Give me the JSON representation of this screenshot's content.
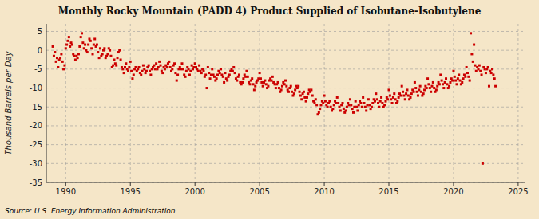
{
  "chart_data": {
    "type": "scatter",
    "title": "Monthly Rocky Mountain (PADD 4) Product Supplied of Isobutane-Isobutylene",
    "y_label": "Thousand Barrels per Day",
    "annotations": [
      "Source: U.S. Energy Information Administration"
    ],
    "color": "#cc0000",
    "marker": "square",
    "grid": true,
    "xlim": [
      1988.5,
      2025.5
    ],
    "ylim": [
      -35,
      7
    ],
    "xticks": [
      1990,
      1995,
      2000,
      2005,
      2010,
      2015,
      2020,
      2025
    ],
    "yticks": [
      5,
      0,
      -5,
      -10,
      -15,
      -20,
      -25,
      -30,
      -35
    ],
    "x": [
      1989,
      1989.0833333333333,
      1989.1666666666667,
      1989.25,
      1989.3333333333333,
      1989.4166666666667,
      1989.5,
      1989.5833333333333,
      1989.6666666666667,
      1989.75,
      1989.8333333333333,
      1989.9166666666667,
      1990,
      1990.0833333333333,
      1990.1666666666667,
      1990.25,
      1990.3333333333333,
      1990.4166666666667,
      1990.5,
      1990.5833333333333,
      1990.6666666666667,
      1990.75,
      1990.8333333333333,
      1990.9166666666667,
      1991,
      1991.0833333333333,
      1991.1666666666667,
      1991.25,
      1991.3333333333333,
      1991.4166666666667,
      1991.5,
      1991.5833333333333,
      1991.6666666666667,
      1991.75,
      1991.8333333333333,
      1991.9166666666667,
      1992,
      1992.0833333333333,
      1992.1666666666667,
      1992.25,
      1992.3333333333333,
      1992.4166666666667,
      1992.5,
      1992.5833333333333,
      1992.6666666666667,
      1992.75,
      1992.8333333333333,
      1992.9166666666667,
      1993,
      1993.0833333333333,
      1993.1666666666667,
      1993.25,
      1993.3333333333333,
      1993.4166666666667,
      1993.5,
      1993.5833333333333,
      1993.6666666666667,
      1993.75,
      1993.8333333333333,
      1993.9166666666667,
      1994,
      1994.0833333333333,
      1994.1666666666667,
      1994.25,
      1994.3333333333333,
      1994.4166666666667,
      1994.5,
      1994.5833333333333,
      1994.6666666666667,
      1994.75,
      1994.8333333333333,
      1994.9166666666667,
      1995,
      1995.0833333333333,
      1995.1666666666667,
      1995.25,
      1995.3333333333333,
      1995.4166666666667,
      1995.5,
      1995.5833333333333,
      1995.6666666666667,
      1995.75,
      1995.8333333333333,
      1995.9166666666667,
      1996,
      1996.0833333333333,
      1996.1666666666667,
      1996.25,
      1996.3333333333333,
      1996.4166666666667,
      1996.5,
      1996.5833333333333,
      1996.6666666666667,
      1996.75,
      1996.8333333333333,
      1996.9166666666667,
      1997,
      1997.0833333333333,
      1997.1666666666667,
      1997.25,
      1997.3333333333333,
      1997.4166666666667,
      1997.5,
      1997.5833333333333,
      1997.6666666666667,
      1997.75,
      1997.8333333333333,
      1997.9166666666667,
      1998,
      1998.0833333333333,
      1998.1666666666667,
      1998.25,
      1998.3333333333333,
      1998.4166666666667,
      1998.5,
      1998.5833333333333,
      1998.6666666666667,
      1998.75,
      1998.8333333333333,
      1998.9166666666667,
      1999,
      1999.0833333333333,
      1999.1666666666667,
      1999.25,
      1999.3333333333333,
      1999.4166666666667,
      1999.5,
      1999.5833333333333,
      1999.6666666666667,
      1999.75,
      1999.8333333333333,
      1999.9166666666667,
      2000,
      2000.0833333333333,
      2000.1666666666667,
      2000.25,
      2000.3333333333333,
      2000.4166666666667,
      2000.5,
      2000.5833333333333,
      2000.6666666666667,
      2000.75,
      2000.8333333333333,
      2000.9166666666667,
      2001,
      2001.0833333333333,
      2001.1666666666667,
      2001.25,
      2001.3333333333333,
      2001.4166666666667,
      2001.5,
      2001.5833333333333,
      2001.6666666666667,
      2001.75,
      2001.8333333333333,
      2001.9166666666667,
      2002,
      2002.0833333333333,
      2002.1666666666667,
      2002.25,
      2002.3333333333333,
      2002.4166666666667,
      2002.5,
      2002.5833333333333,
      2002.6666666666667,
      2002.75,
      2002.8333333333333,
      2002.9166666666667,
      2003,
      2003.0833333333333,
      2003.1666666666667,
      2003.25,
      2003.3333333333333,
      2003.4166666666667,
      2003.5,
      2003.5833333333333,
      2003.6666666666667,
      2003.75,
      2003.8333333333333,
      2003.9166666666667,
      2004,
      2004.0833333333333,
      2004.1666666666667,
      2004.25,
      2004.3333333333333,
      2004.4166666666667,
      2004.5,
      2004.5833333333333,
      2004.6666666666667,
      2004.75,
      2004.8333333333333,
      2004.9166666666667,
      2005,
      2005.0833333333333,
      2005.1666666666667,
      2005.25,
      2005.3333333333333,
      2005.4166666666667,
      2005.5,
      2005.5833333333333,
      2005.6666666666667,
      2005.75,
      2005.8333333333333,
      2005.9166666666667,
      2006,
      2006.0833333333333,
      2006.1666666666667,
      2006.25,
      2006.3333333333333,
      2006.4166666666667,
      2006.5,
      2006.5833333333333,
      2006.6666666666667,
      2006.75,
      2006.8333333333333,
      2006.9166666666667,
      2007,
      2007.0833333333333,
      2007.1666666666667,
      2007.25,
      2007.3333333333333,
      2007.4166666666667,
      2007.5,
      2007.5833333333333,
      2007.6666666666667,
      2007.75,
      2007.8333333333333,
      2007.9166666666667,
      2008,
      2008.0833333333333,
      2008.1666666666667,
      2008.25,
      2008.3333333333333,
      2008.4166666666667,
      2008.5,
      2008.5833333333333,
      2008.6666666666667,
      2008.75,
      2008.8333333333333,
      2008.9166666666667,
      2009,
      2009.0833333333333,
      2009.1666666666667,
      2009.25,
      2009.3333333333333,
      2009.4166666666667,
      2009.5,
      2009.5833333333333,
      2009.6666666666667,
      2009.75,
      2009.8333333333333,
      2009.9166666666667,
      2010,
      2010.0833333333333,
      2010.1666666666667,
      2010.25,
      2010.3333333333333,
      2010.4166666666667,
      2010.5,
      2010.5833333333333,
      2010.6666666666667,
      2010.75,
      2010.8333333333333,
      2010.9166666666667,
      2011,
      2011.0833333333333,
      2011.1666666666667,
      2011.25,
      2011.3333333333333,
      2011.4166666666667,
      2011.5,
      2011.5833333333333,
      2011.6666666666667,
      2011.75,
      2011.8333333333333,
      2011.9166666666667,
      2012,
      2012.0833333333333,
      2012.1666666666667,
      2012.25,
      2012.3333333333333,
      2012.4166666666667,
      2012.5,
      2012.5833333333333,
      2012.6666666666667,
      2012.75,
      2012.8333333333333,
      2012.9166666666667,
      2013,
      2013.0833333333333,
      2013.1666666666667,
      2013.25,
      2013.3333333333333,
      2013.4166666666667,
      2013.5,
      2013.5833333333333,
      2013.6666666666667,
      2013.75,
      2013.8333333333333,
      2013.9166666666667,
      2014,
      2014.0833333333333,
      2014.1666666666667,
      2014.25,
      2014.3333333333333,
      2014.4166666666667,
      2014.5,
      2014.5833333333333,
      2014.6666666666667,
      2014.75,
      2014.8333333333333,
      2014.9166666666667,
      2015,
      2015.0833333333333,
      2015.1666666666667,
      2015.25,
      2015.3333333333333,
      2015.4166666666667,
      2015.5,
      2015.5833333333333,
      2015.6666666666667,
      2015.75,
      2015.8333333333333,
      2015.9166666666667,
      2016,
      2016.0833333333333,
      2016.1666666666667,
      2016.25,
      2016.3333333333333,
      2016.4166666666667,
      2016.5,
      2016.5833333333333,
      2016.6666666666667,
      2016.75,
      2016.8333333333333,
      2016.9166666666667,
      2017,
      2017.0833333333333,
      2017.1666666666667,
      2017.25,
      2017.3333333333333,
      2017.4166666666667,
      2017.5,
      2017.5833333333333,
      2017.6666666666667,
      2017.75,
      2017.8333333333333,
      2017.9166666666667,
      2018,
      2018.0833333333333,
      2018.1666666666667,
      2018.25,
      2018.3333333333333,
      2018.4166666666667,
      2018.5,
      2018.5833333333333,
      2018.6666666666667,
      2018.75,
      2018.8333333333333,
      2018.9166666666667,
      2019,
      2019.0833333333333,
      2019.1666666666667,
      2019.25,
      2019.3333333333333,
      2019.4166666666667,
      2019.5,
      2019.5833333333333,
      2019.6666666666667,
      2019.75,
      2019.8333333333333,
      2019.9166666666667,
      2020,
      2020.0833333333333,
      2020.1666666666667,
      2020.25,
      2020.3333333333333,
      2020.4166666666667,
      2020.5,
      2020.5833333333333,
      2020.6666666666667,
      2020.75,
      2020.8333333333333,
      2020.9166666666667,
      2021,
      2021.0833333333333,
      2021.1666666666667,
      2021.25,
      2021.3333333333333,
      2021.4166666666667,
      2021.5,
      2021.5833333333333,
      2021.6666666666667,
      2021.75,
      2021.8333333333333,
      2021.9166666666667,
      2022,
      2022.0833333333333,
      2022.1666666666667,
      2022.25,
      2022.3333333333333,
      2022.4166666666667,
      2022.5,
      2022.5833333333333,
      2022.6666666666667,
      2022.75,
      2022.8333333333333,
      2022.9166666666667,
      2023,
      2023.0833333333333,
      2023.1666666666667,
      2023.25
    ],
    "values": [
      1.0,
      -1.5,
      -0.5,
      -3.0,
      -2.0,
      -4.5,
      -2.5,
      -2.0,
      -1.0,
      -3.0,
      -5.0,
      -4.0,
      0.5,
      1.5,
      2.5,
      3.5,
      1.0,
      2.0,
      1.5,
      -1.0,
      -1.5,
      -2.5,
      -1.5,
      -2.0,
      -1.0,
      1.0,
      3.5,
      4.5,
      2.0,
      0.5,
      1.5,
      0.0,
      -0.5,
      1.5,
      3.0,
      2.5,
      0.5,
      -1.0,
      1.5,
      3.0,
      1.0,
      1.5,
      -0.5,
      -2.0,
      0.5,
      -1.5,
      -1.0,
      0.0,
      0.5,
      -2.0,
      -1.5,
      -1.0,
      0.5,
      0.0,
      -1.5,
      -4.5,
      -4.0,
      -2.5,
      -3.5,
      -4.0,
      -2.0,
      -0.5,
      0.0,
      -2.5,
      -4.5,
      -5.0,
      -6.0,
      -4.5,
      -3.5,
      -5.0,
      -5.5,
      -4.5,
      -3.0,
      -5.5,
      -7.5,
      -6.5,
      -5.0,
      -4.5,
      -5.5,
      -5.0,
      -4.5,
      -6.0,
      -6.5,
      -5.5,
      -4.0,
      -5.0,
      -6.0,
      -5.5,
      -4.5,
      -4.0,
      -5.5,
      -6.5,
      -5.0,
      -4.5,
      -4.0,
      -5.0,
      -3.5,
      -5.0,
      -4.5,
      -3.0,
      -4.0,
      -5.5,
      -6.0,
      -4.5,
      -5.0,
      -4.0,
      -4.5,
      -3.5,
      -3.0,
      -4.5,
      -5.5,
      -5.0,
      -4.0,
      -3.5,
      -6.0,
      -8.0,
      -6.5,
      -5.0,
      -4.5,
      -5.0,
      -3.5,
      -5.0,
      -6.5,
      -7.0,
      -5.5,
      -4.5,
      -5.0,
      -6.5,
      -5.5,
      -4.0,
      -5.0,
      -4.5,
      -3.5,
      -4.5,
      -5.0,
      -5.5,
      -4.0,
      -5.5,
      -6.0,
      -5.0,
      -5.5,
      -7.0,
      -6.5,
      -10.0,
      -4.5,
      -6.0,
      -7.5,
      -6.5,
      -5.0,
      -6.5,
      -7.0,
      -8.0,
      -7.5,
      -6.5,
      -5.5,
      -6.0,
      -5.0,
      -6.5,
      -7.0,
      -8.5,
      -6.0,
      -7.5,
      -8.0,
      -7.0,
      -6.5,
      -5.5,
      -5.0,
      -5.5,
      -4.5,
      -6.0,
      -7.5,
      -8.0,
      -7.0,
      -6.5,
      -8.5,
      -9.0,
      -8.5,
      -7.5,
      -6.5,
      -7.0,
      -5.5,
      -7.0,
      -8.5,
      -9.0,
      -8.0,
      -7.5,
      -9.0,
      -10.5,
      -9.5,
      -8.5,
      -8.0,
      -7.5,
      -6.0,
      -7.5,
      -8.5,
      -9.5,
      -8.5,
      -8.0,
      -9.0,
      -10.0,
      -9.5,
      -8.0,
      -7.5,
      -8.0,
      -7.0,
      -8.5,
      -9.0,
      -10.0,
      -9.0,
      -8.5,
      -10.0,
      -11.0,
      -10.5,
      -9.5,
      -8.5,
      -9.0,
      -8.0,
      -9.5,
      -10.5,
      -11.0,
      -10.0,
      -9.5,
      -11.0,
      -12.0,
      -11.5,
      -10.5,
      -9.5,
      -10.0,
      -9.5,
      -11.0,
      -12.0,
      -13.0,
      -11.5,
      -11.0,
      -12.5,
      -13.5,
      -12.5,
      -11.5,
      -10.5,
      -11.0,
      -10.5,
      -12.0,
      -13.5,
      -14.0,
      -13.0,
      -14.5,
      -17.0,
      -16.5,
      -15.5,
      -14.5,
      -13.5,
      -14.0,
      -12.0,
      -13.5,
      -14.5,
      -15.0,
      -14.0,
      -13.5,
      -15.0,
      -16.0,
      -15.5,
      -14.5,
      -13.5,
      -14.0,
      -12.5,
      -14.0,
      -15.0,
      -16.0,
      -14.5,
      -14.0,
      -15.5,
      -16.5,
      -16.0,
      -15.0,
      -14.0,
      -14.5,
      -13.0,
      -14.5,
      -15.5,
      -16.5,
      -15.0,
      -13.5,
      -15.0,
      -16.0,
      -14.5,
      -13.5,
      -14.0,
      -15.0,
      -12.5,
      -14.0,
      -15.0,
      -16.0,
      -14.5,
      -13.0,
      -14.5,
      -15.5,
      -15.0,
      -14.0,
      -13.0,
      -13.5,
      -11.5,
      -13.0,
      -14.0,
      -15.0,
      -13.5,
      -12.5,
      -14.0,
      -15.0,
      -14.5,
      -13.5,
      -12.5,
      -13.0,
      -10.5,
      -12.0,
      -13.0,
      -14.0,
      -12.5,
      -11.5,
      -13.0,
      -14.0,
      -13.5,
      -12.5,
      -11.5,
      -12.0,
      -9.5,
      -11.0,
      -12.0,
      -13.0,
      -11.5,
      -10.5,
      -12.0,
      -13.0,
      -12.5,
      -11.5,
      -10.5,
      -11.0,
      -8.5,
      -10.0,
      -11.0,
      -12.0,
      -10.5,
      -9.5,
      -11.0,
      -12.0,
      -11.5,
      -10.5,
      -9.5,
      -10.0,
      -7.5,
      -9.0,
      -10.0,
      -11.0,
      -9.5,
      -8.5,
      -10.0,
      -11.0,
      -10.5,
      -9.5,
      -8.5,
      -9.0,
      -6.5,
      -8.0,
      -9.0,
      -10.0,
      -8.5,
      -7.5,
      -9.0,
      -10.0,
      -9.5,
      -8.5,
      -7.5,
      -8.0,
      -5.5,
      -7.0,
      -8.0,
      -9.0,
      -7.5,
      -6.5,
      -8.0,
      -9.0,
      -8.5,
      -7.5,
      -6.5,
      -7.0,
      -4.5,
      -6.0,
      -7.0,
      -8.0,
      4.5,
      -1.0,
      -3.0,
      1.5,
      -4.0,
      -5.5,
      -4.5,
      -5.0,
      -4.0,
      -5.5,
      -6.5,
      -30.0,
      -4.5,
      -5.0,
      -6.0,
      -5.0,
      -4.5,
      -9.5,
      -5.5,
      -6.0,
      -5.0,
      -6.5,
      -7.5,
      -9.5
    ]
  }
}
